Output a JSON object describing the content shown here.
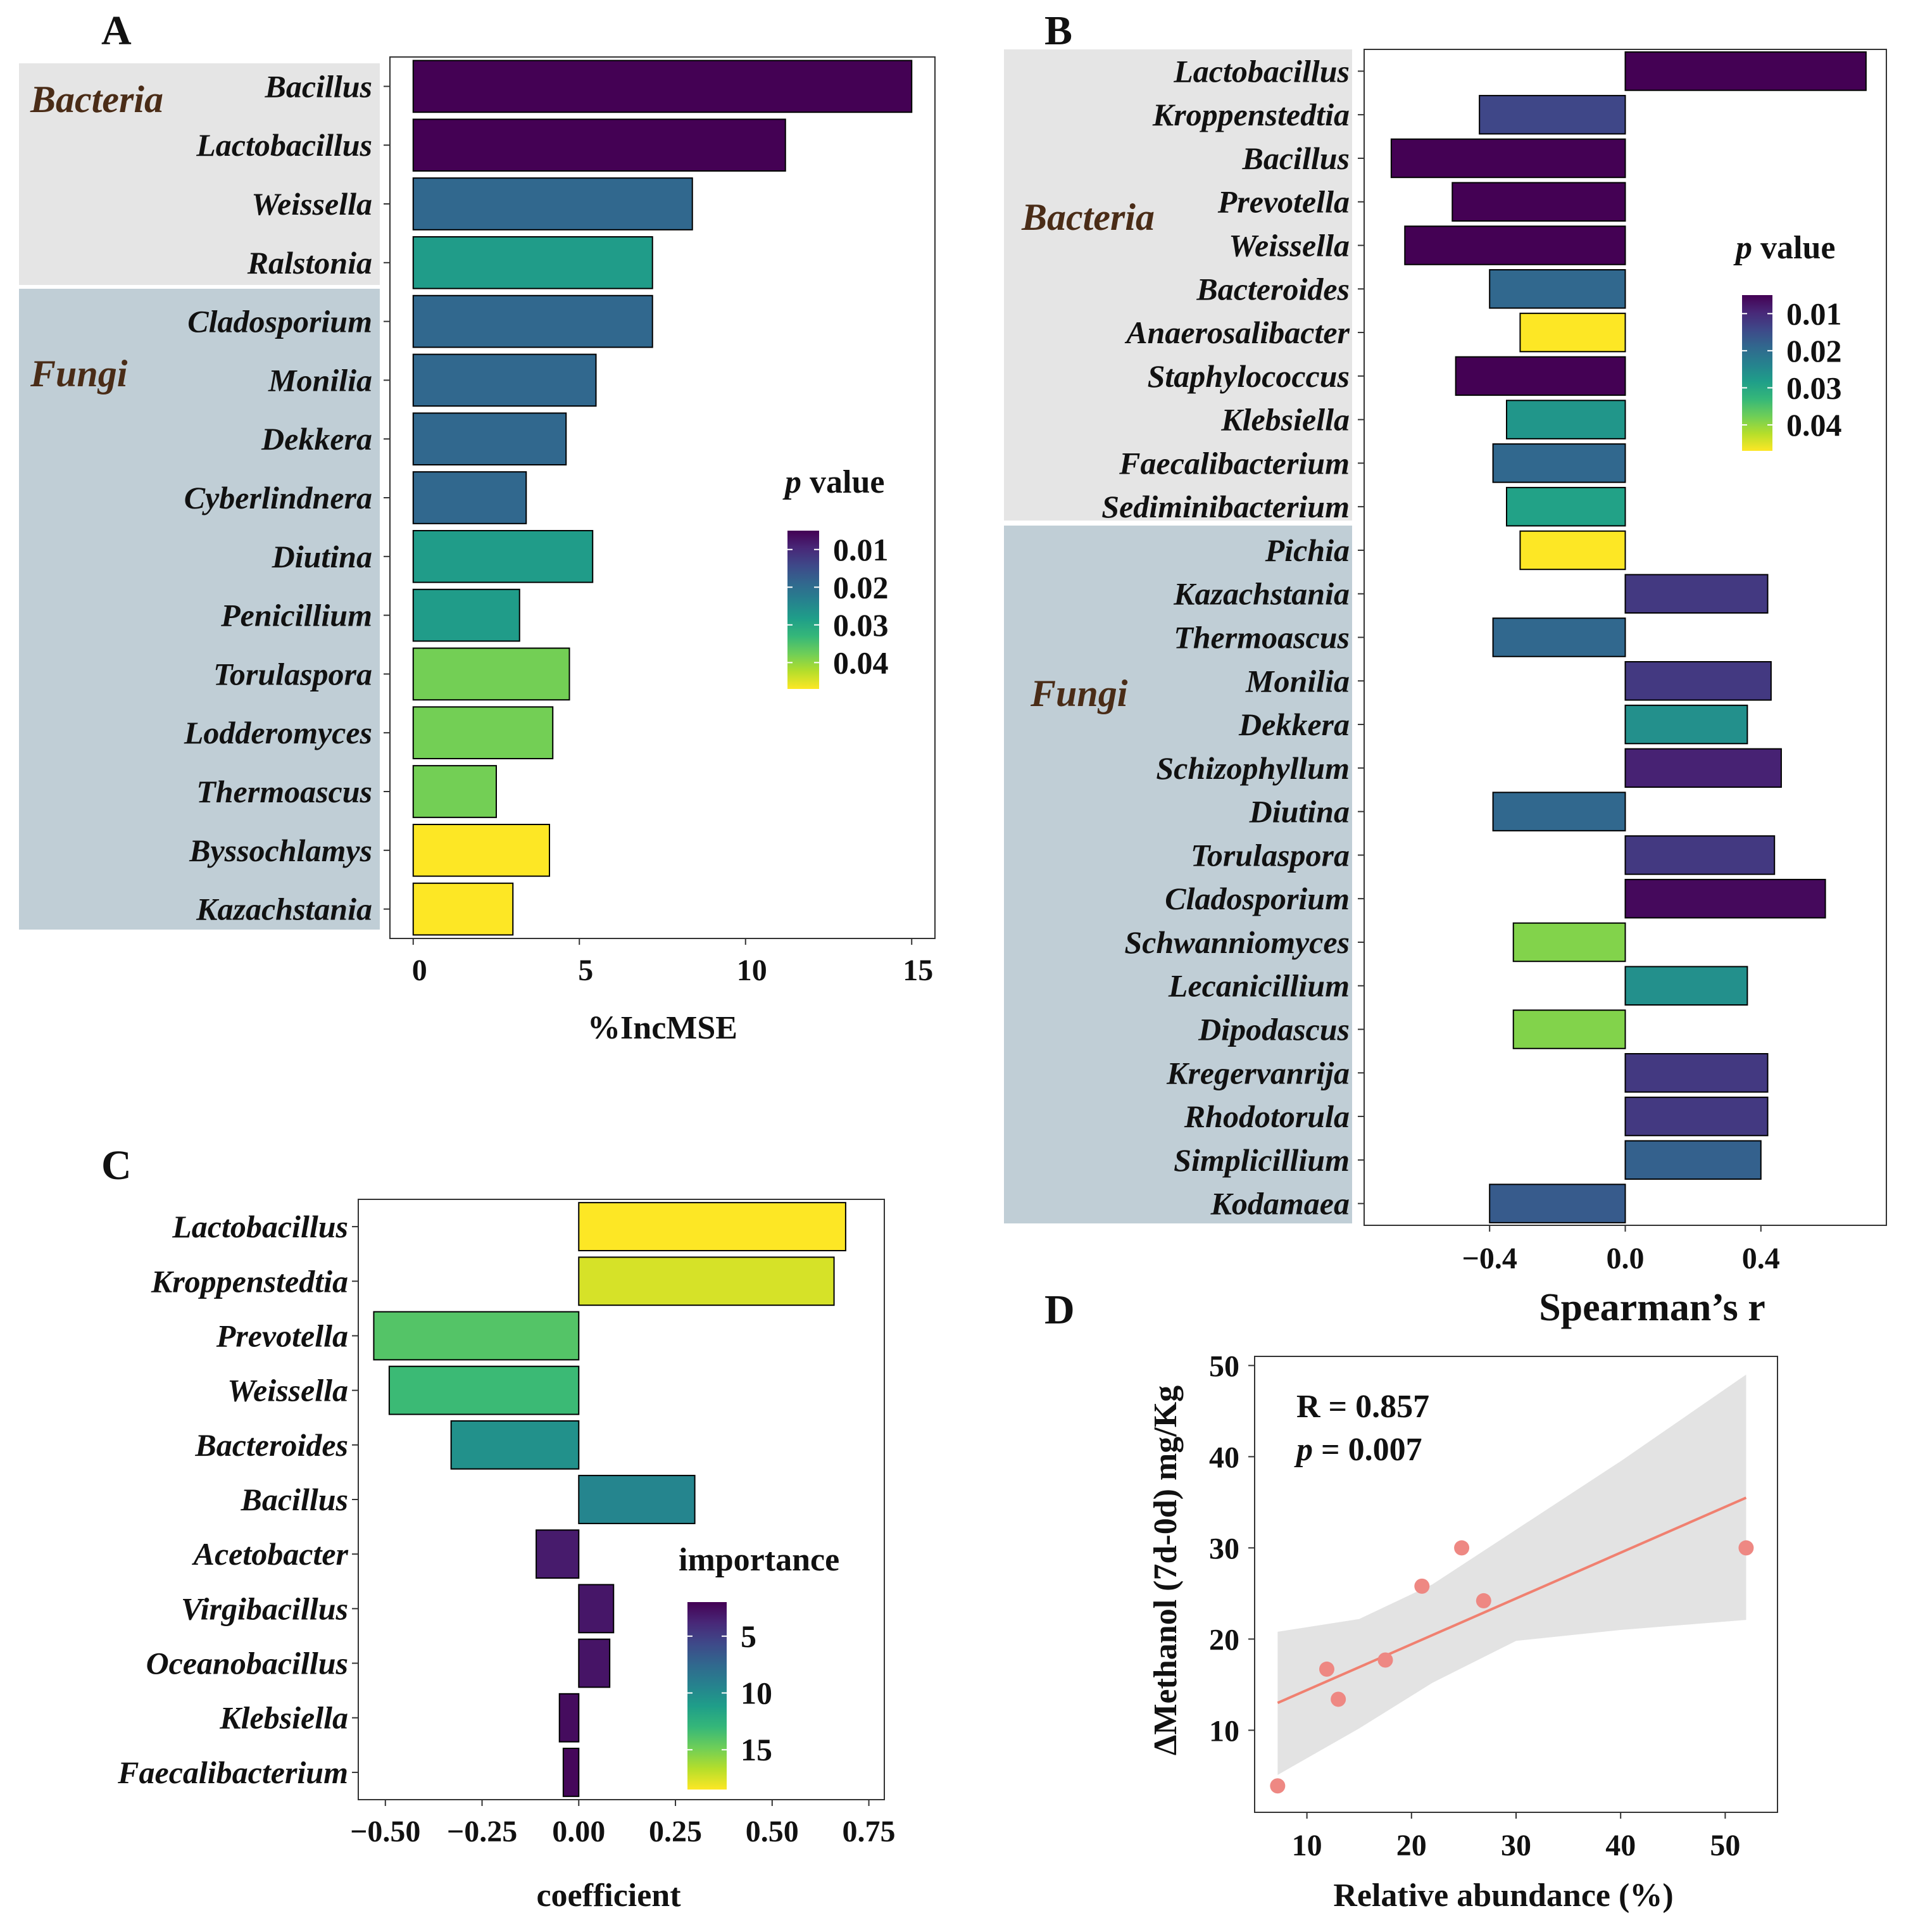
{
  "chart_data": [
    {
      "id": "A",
      "type": "bar",
      "orientation": "horizontal",
      "panel_label": "A",
      "xlabel": "%IncMSE",
      "xlim": [
        -0.7,
        15.7
      ],
      "xticks": [
        0,
        5,
        10,
        15
      ],
      "groups": [
        {
          "name": "Bacteria",
          "categories": [
            "Bacillus",
            "Lactobacillus",
            "Weissella",
            "Ralstonia"
          ]
        },
        {
          "name": "Fungi",
          "categories": [
            "Cladosporium",
            "Monilia",
            "Dekkera",
            "Cyberlindnera",
            "Diutina",
            "Penicillium",
            "Torulaspora",
            "Lodderomyces",
            "Thermoascus",
            "Byssochlamys",
            "Kazachstania"
          ]
        }
      ],
      "categories": [
        "Bacillus",
        "Lactobacillus",
        "Weissella",
        "Ralstonia",
        "Cladosporium",
        "Monilia",
        "Dekkera",
        "Cyberlindnera",
        "Diutina",
        "Penicillium",
        "Torulaspora",
        "Lodderomyces",
        "Thermoascus",
        "Byssochlamys",
        "Kazachstania"
      ],
      "values": [
        15.0,
        11.2,
        8.4,
        7.2,
        7.2,
        5.5,
        4.6,
        3.4,
        5.4,
        3.2,
        4.7,
        4.2,
        2.5,
        4.1,
        3.0
      ],
      "p_values": [
        0.005,
        0.005,
        0.019,
        0.028,
        0.019,
        0.019,
        0.019,
        0.019,
        0.028,
        0.028,
        0.038,
        0.038,
        0.038,
        0.047,
        0.047
      ],
      "legend": {
        "title_italic": "p",
        "title_rest": " value",
        "ticks": [
          "0.01",
          "0.02",
          "0.03",
          "0.04"
        ],
        "range": [
          0.005,
          0.047
        ],
        "placement": "right"
      }
    },
    {
      "id": "B",
      "type": "bar",
      "orientation": "horizontal",
      "panel_label": "B",
      "xlabel": "Spearman’s r",
      "xlim": [
        -0.77,
        0.77
      ],
      "xticks": [
        -0.4,
        0.0,
        0.4
      ],
      "xtick_labels": [
        "−0.4",
        "0.0",
        "0.4"
      ],
      "groups": [
        {
          "name": "Bacteria",
          "categories": [
            "Lactobacillus",
            "Kroppenstedtia",
            "Bacillus",
            "Prevotella",
            "Weissella",
            "Bacteroides",
            "Anaerosalibacter",
            "Staphylococcus",
            "Klebsiella",
            "Faecalibacterium",
            "Sediminibacterium"
          ]
        },
        {
          "name": "Fungi",
          "categories": [
            "Pichia",
            "Kazachstania",
            "Thermoascus",
            "Monilia",
            "Dekkera",
            "Schizophyllum",
            "Diutina",
            "Torulaspora",
            "Cladosporium",
            "Schwanniomyces",
            "Lecanicillium",
            "Dipodascus",
            "Kregervanrija",
            "Rhodotorula",
            "Simplicillium",
            "Kodamaea"
          ]
        }
      ],
      "categories": [
        "Lactobacillus",
        "Kroppenstedtia",
        "Bacillus",
        "Prevotella",
        "Weissella",
        "Bacteroides",
        "Anaerosalibacter",
        "Staphylococcus",
        "Klebsiella",
        "Faecalibacterium",
        "Sediminibacterium",
        "Pichia",
        "Kazachstania",
        "Thermoascus",
        "Monilia",
        "Dekkera",
        "Schizophyllum",
        "Diutina",
        "Torulaspora",
        "Cladosporium",
        "Schwanniomyces",
        "Lecanicillium",
        "Dipodascus",
        "Kregervanrija",
        "Rhodotorula",
        "Simplicillium",
        "Kodamaea"
      ],
      "values": [
        0.71,
        -0.43,
        -0.69,
        -0.51,
        -0.65,
        -0.4,
        -0.31,
        -0.5,
        -0.35,
        -0.39,
        -0.35,
        -0.31,
        0.42,
        -0.39,
        0.43,
        0.36,
        0.46,
        -0.39,
        0.44,
        0.59,
        -0.33,
        0.36,
        -0.33,
        0.42,
        0.42,
        0.4,
        -0.4
      ],
      "p_values": [
        0.005,
        0.014,
        0.005,
        0.005,
        0.005,
        0.019,
        0.047,
        0.005,
        0.027,
        0.019,
        0.029,
        0.047,
        0.012,
        0.019,
        0.012,
        0.026,
        0.009,
        0.019,
        0.012,
        0.006,
        0.039,
        0.026,
        0.039,
        0.012,
        0.012,
        0.018,
        0.017
      ],
      "legend": {
        "title_italic": "p",
        "title_rest": " value",
        "ticks": [
          "0.01",
          "0.02",
          "0.03",
          "0.04"
        ],
        "range": [
          0.005,
          0.047
        ],
        "placement": "top-right"
      }
    },
    {
      "id": "C",
      "type": "bar",
      "orientation": "horizontal",
      "panel_label": "C",
      "xlabel": "coefficient",
      "xlim": [
        -0.57,
        0.79
      ],
      "xticks": [
        -0.5,
        -0.25,
        0.0,
        0.25,
        0.5,
        0.75
      ],
      "xtick_labels": [
        "−0.50",
        "−0.25",
        "0.00",
        "0.25",
        "0.50",
        "0.75"
      ],
      "categories": [
        "Lactobacillus",
        "Kroppenstedtia",
        "Prevotella",
        "Weissella",
        "Bacteroides",
        "Bacillus",
        "Acetobacter",
        "Virgibacillus",
        "Oceanobacillus",
        "Klebsiella",
        "Faecalibacterium"
      ],
      "values": [
        0.69,
        0.66,
        -0.53,
        -0.49,
        -0.33,
        0.3,
        -0.11,
        0.09,
        0.08,
        -0.05,
        -0.04
      ],
      "importance": [
        18.5,
        17.5,
        14.0,
        13.2,
        10.3,
        9.5,
        3.2,
        3.0,
        2.9,
        2.5,
        2.3
      ],
      "legend": {
        "title": "importance",
        "ticks": [
          "5",
          "10",
          "15"
        ],
        "range": [
          2.0,
          18.5
        ],
        "placement": "right"
      }
    },
    {
      "id": "D",
      "type": "scatter",
      "panel_label": "D",
      "xlabel": "Relative abundance (%)",
      "ylabel": "ΔMethanol (7d-0d) mg/Kg",
      "xlim": [
        5,
        55
      ],
      "ylim": [
        1,
        51
      ],
      "xticks": [
        10,
        20,
        30,
        40,
        50
      ],
      "yticks": [
        10,
        20,
        30,
        40,
        50
      ],
      "x": [
        7.2,
        11.9,
        13.0,
        17.5,
        21.0,
        24.8,
        26.9,
        52.0
      ],
      "y": [
        3.9,
        16.7,
        13.4,
        17.7,
        25.8,
        30.0,
        24.2,
        30.0
      ],
      "fit": {
        "x": [
          7.2,
          52.0
        ],
        "y": [
          13.0,
          35.5
        ],
        "ci_x": [
          7.2,
          15,
          22,
          30,
          40,
          52
        ],
        "ci_lower": [
          5.1,
          10.2,
          15.2,
          19.8,
          21.0,
          22.1
        ],
        "ci_upper": [
          20.8,
          22.2,
          26.0,
          32.0,
          39.5,
          49.0
        ]
      },
      "annotations": {
        "r_text": "R = 0.857",
        "p_italic": "p",
        "p_rest": " = 0.007"
      }
    }
  ],
  "colors": {
    "group_bacteria_bg": "#e5e5e5",
    "group_fungi_bg": "#c0ced6",
    "group_label": "#4a2c17",
    "fit_line": "#f08070",
    "points": "#ee8883",
    "ci_band": "#e3e3e3",
    "viridis": [
      "#440154",
      "#482878",
      "#3e4989",
      "#31688e",
      "#26828e",
      "#1f9e89",
      "#35b779",
      "#6ece58",
      "#b5de2b",
      "#fde725"
    ]
  }
}
